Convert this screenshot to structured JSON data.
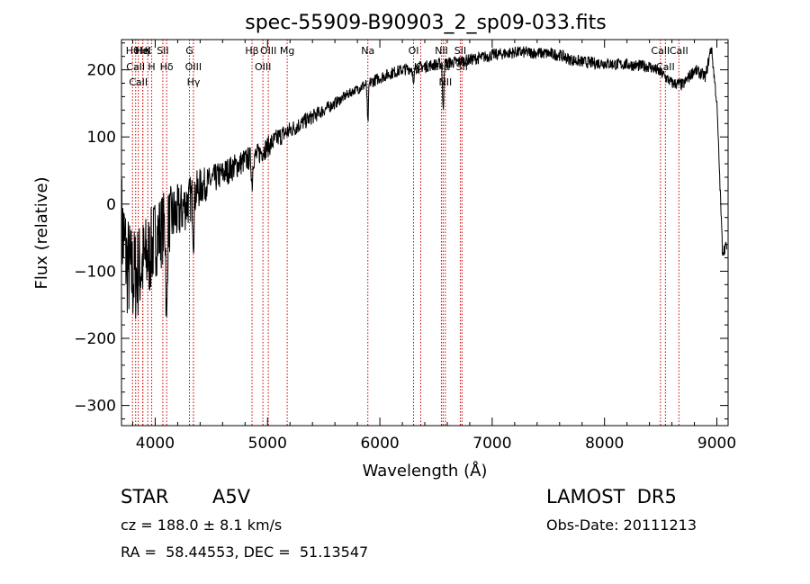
{
  "chart_data": {
    "type": "line",
    "title": "spec-55909-B90903_2_sp09-033.fits",
    "xlabel": "Wavelength (Å)",
    "ylabel": "Flux (relative)",
    "xlim": [
      3700,
      9100
    ],
    "ylim": [
      -330,
      245
    ],
    "xticks": [
      4000,
      5000,
      6000,
      7000,
      8000,
      9000
    ],
    "yticks": [
      -300,
      -200,
      -100,
      0,
      100,
      200
    ],
    "grid": false,
    "line_color": "#000000",
    "marker_color": "#cc0000",
    "series": [
      {
        "x": [
          3700,
          3750,
          3800,
          3850,
          3900,
          3950,
          4000,
          4050,
          4100,
          4150,
          4200,
          4250,
          4300,
          4350,
          4400,
          4500,
          4600,
          4700,
          4800,
          4900,
          5000,
          5100,
          5200,
          5300,
          5400,
          5500,
          5600,
          5700,
          5800,
          5900,
          6000,
          6100,
          6200,
          6300,
          6400,
          6500,
          6600,
          6700,
          6800,
          6900,
          7000,
          7100,
          7200,
          7300,
          7400,
          7500,
          7600,
          7700,
          7800,
          7900,
          8000,
          8100,
          8200,
          8300,
          8400,
          8500,
          8600,
          8700,
          8800,
          8900,
          8950,
          9000,
          9050,
          9100
        ],
        "y": [
          -30,
          -90,
          -110,
          -100,
          -85,
          -75,
          -50,
          -40,
          -30,
          -20,
          -15,
          -5,
          5,
          15,
          25,
          35,
          45,
          55,
          65,
          72,
          85,
          100,
          110,
          120,
          130,
          140,
          150,
          162,
          172,
          180,
          188,
          195,
          200,
          203,
          205,
          208,
          210,
          212,
          215,
          218,
          222,
          224,
          226,
          226,
          225,
          224,
          222,
          215,
          212,
          210,
          210,
          208,
          208,
          206,
          205,
          196,
          180,
          178,
          200,
          190,
          235,
          150,
          -70,
          -60
        ]
      }
    ],
    "lines": [
      {
        "label": "Hθ",
        "wavelength": 3798
      },
      {
        "label": "CaII",
        "wavelength": 3826
      },
      {
        "label": "CaII",
        "wavelength": 3850
      },
      {
        "label": "Hη",
        "wavelength": 3889
      },
      {
        "label": "HeI",
        "wavelength": 3890
      },
      {
        "label": "K",
        "wavelength": 3934
      },
      {
        "label": "H",
        "wavelength": 3969
      },
      {
        "label": "Hδ",
        "wavelength": 4102
      },
      {
        "label": "SII",
        "wavelength": 4068
      },
      {
        "label": "OIII",
        "wavelength": 4340
      },
      {
        "label": "Hγ",
        "wavelength": 4341
      },
      {
        "label": "G",
        "wavelength": 4305
      },
      {
        "label": "Hβ",
        "wavelength": 4862
      },
      {
        "label": "OIII",
        "wavelength": 4959
      },
      {
        "label": "OIII",
        "wavelength": 5007
      },
      {
        "label": "Mg",
        "wavelength": 5175
      },
      {
        "label": "Na",
        "wavelength": 5893
      },
      {
        "label": "OI",
        "wavelength": 6300
      },
      {
        "label": "OI",
        "wavelength": 6364
      },
      {
        "label": "Hα",
        "wavelength": 6563
      },
      {
        "label": "NII",
        "wavelength": 6548
      },
      {
        "label": "NII",
        "wavelength": 6583
      },
      {
        "label": "SII",
        "wavelength": 6716
      },
      {
        "label": "SII",
        "wavelength": 6731
      },
      {
        "label": "CaII",
        "wavelength": 8498
      },
      {
        "label": "CaII",
        "wavelength": 8542
      },
      {
        "label": "CaII",
        "wavelength": 8662
      }
    ]
  },
  "info": {
    "class": "STAR",
    "subclass": "A5V",
    "survey": "LAMOST  DR5",
    "cz": "cz = 188.0 ± 8.1 km/s",
    "obs_date": "Obs-Date: 20111213",
    "radec": "RA =  58.44553, DEC =  51.13547"
  }
}
